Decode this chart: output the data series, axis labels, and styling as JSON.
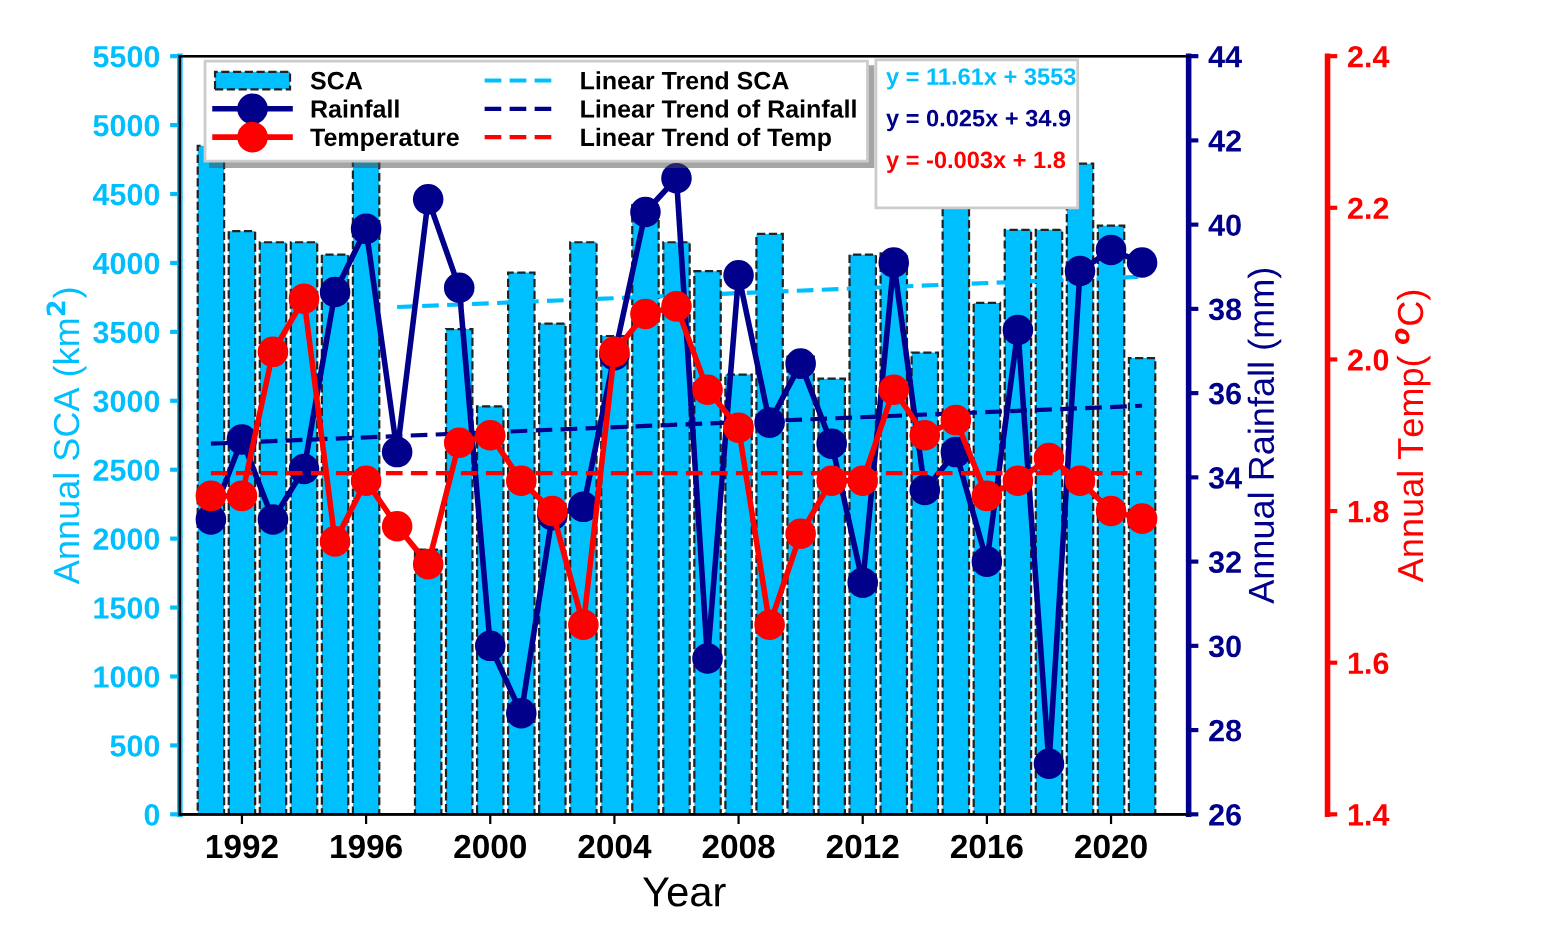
{
  "chart_data": {
    "type": "bar",
    "x": [
      1991,
      1992,
      1993,
      1994,
      1995,
      1996,
      1997,
      1998,
      1999,
      2000,
      2001,
      2002,
      2003,
      2004,
      2005,
      2006,
      2007,
      2008,
      2009,
      2010,
      2011,
      2012,
      2013,
      2014,
      2015,
      2016,
      2017,
      2018,
      2019,
      2020,
      2021
    ],
    "xlabel": "Year",
    "ylabel": "Annual SCA (km$^{2}$)",
    "y2label": "Annual Rainfall (mm)",
    "y3label": "Annual Temp( $^{o}$C)",
    "xlim": [
      1990,
      2022.5
    ],
    "xticks": [
      1992,
      1996,
      2000,
      2004,
      2008,
      2012,
      2016,
      2020
    ],
    "ylim": [
      0,
      5500
    ],
    "yticks": [
      0,
      500,
      1000,
      1500,
      2000,
      2500,
      3000,
      3500,
      4000,
      4500,
      5000,
      5500
    ],
    "y2lim": [
      26,
      44
    ],
    "y2ticks": [
      26,
      28,
      30,
      32,
      34,
      36,
      38,
      40,
      42,
      44
    ],
    "y3lim": [
      1.4,
      2.4
    ],
    "y3ticks": [
      1.4,
      1.6,
      1.8,
      {
        "value": 2.0,
        "label": "2.0"
      },
      2.2,
      2.4
    ],
    "legend": "top left",
    "grid": false,
    "series": [
      {
        "name": "SCA",
        "color": "#00bfff",
        "values": [
          4850,
          4230,
          4150,
          4150,
          4060,
          4750,
          null,
          1920,
          3520,
          2960,
          3930,
          3560,
          4150,
          3470,
          4420,
          4150,
          3940,
          3190,
          4210,
          3320,
          3160,
          4060,
          4070,
          3350,
          4400,
          3710,
          4240,
          4240,
          4720,
          4270,
          3310
        ]
      },
      {
        "name": "Rainfall",
        "type": "line",
        "axis": "y2",
        "color": "#00008b",
        "marker": "circle",
        "line_style": "solid",
        "values": [
          33.0,
          34.9,
          33.0,
          34.2,
          38.4,
          39.9,
          34.6,
          40.6,
          38.5,
          30.0,
          28.4,
          33.1,
          33.3,
          36.9,
          40.3,
          41.1,
          29.7,
          38.8,
          35.3,
          36.7,
          34.8,
          31.5,
          39.1,
          33.7,
          34.6,
          32.0,
          37.5,
          27.2,
          38.9,
          39.4,
          39.1
        ]
      },
      {
        "name": "Temperature",
        "type": "line",
        "axis": "y3",
        "color": "#ff0000",
        "marker": "circle",
        "line_style": "solid",
        "values": [
          1.82,
          1.82,
          2.01,
          2.08,
          1.76,
          1.84,
          1.78,
          1.73,
          1.89,
          1.9,
          1.84,
          1.8,
          1.65,
          2.01,
          2.06,
          2.07,
          1.96,
          1.91,
          1.65,
          1.77,
          1.84,
          1.84,
          1.96,
          1.9,
          1.92,
          1.82,
          1.84,
          1.87,
          1.84,
          1.8,
          1.79
        ]
      },
      {
        "name": "Linear Trend SCA",
        "type": "line",
        "color": "#00bfff",
        "marker": "none",
        "line_style": "dashed",
        "x": [
          1997,
          2021
        ],
        "values": [
          3680,
          3900
        ]
      },
      {
        "name": "Linear Trend of Rainfall",
        "type": "line",
        "axis": "y2",
        "color": "#00008b",
        "marker": "none",
        "line_style": "dashed",
        "x": [
          1991,
          2021
        ],
        "values": [
          34.8,
          35.7
        ]
      },
      {
        "name": "Linear Trend of Temp",
        "type": "line",
        "axis": "y3",
        "color": "#ff0000",
        "marker": "none",
        "line_style": "dashed",
        "x": [
          1991,
          2021
        ],
        "values": [
          1.85,
          1.85
        ]
      }
    ],
    "annotations": [
      "y = 11.61x + 3553",
      "y = 0.025x + 34.9",
      "y = -0.003x + 1.8"
    ]
  }
}
